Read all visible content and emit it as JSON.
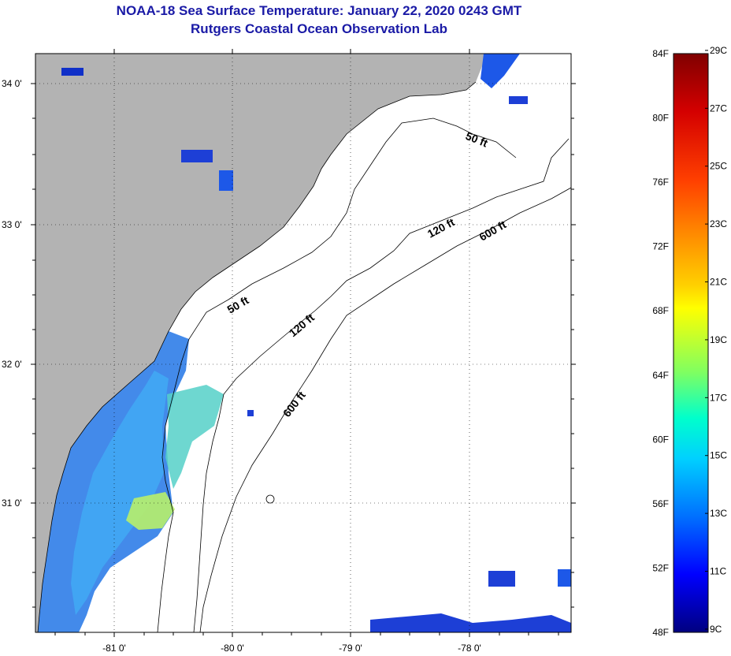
{
  "title": "NOAA-18 Sea Surface Temperature:  January 22, 2020 0243 GMT",
  "subtitle": "Rutgers Coastal Ocean Observation Lab",
  "map": {
    "lat_ticks": [
      "34 0'",
      "33 0'",
      "32 0'",
      "31 0'"
    ],
    "lon_ticks": [
      "-81 0'",
      "-80 0'",
      "-79 0'",
      "-78 0'"
    ],
    "isobath_labels": [
      "50 ft",
      "50 ft",
      "120 ft",
      "120 ft",
      "600 ft",
      "600 ft"
    ],
    "colors": {
      "land": "#b3b3b3",
      "ocean": "#ffffff",
      "coast": "#000000"
    }
  },
  "colorbar": {
    "fahrenheit": [
      "84F",
      "80F",
      "76F",
      "72F",
      "68F",
      "64F",
      "60F",
      "56F",
      "52F",
      "48F"
    ],
    "celsius": [
      "29C",
      "27C",
      "25C",
      "23C",
      "21C",
      "19C",
      "17C",
      "15C",
      "13C",
      "11C",
      "9C"
    ],
    "min_f": 48,
    "max_f": 84,
    "gradient": [
      "#800000",
      "#ff0000",
      "#ff8000",
      "#ffff00",
      "#80ff80",
      "#00ffff",
      "#0080ff",
      "#0000ff",
      "#000080"
    ]
  }
}
